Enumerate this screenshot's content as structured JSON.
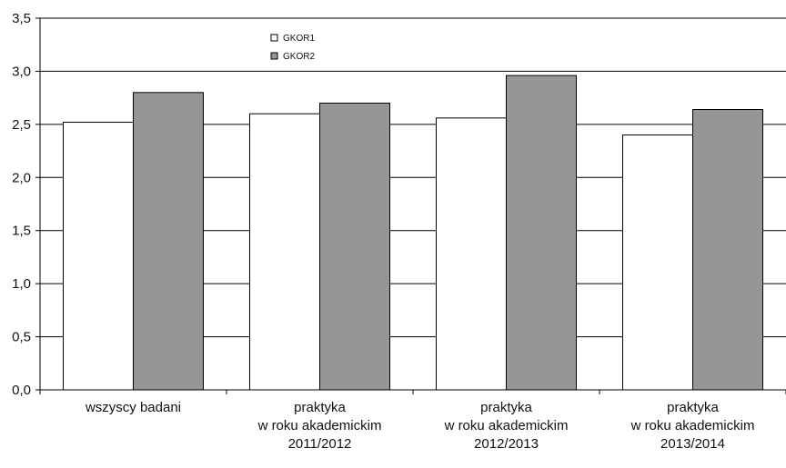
{
  "chart_data": {
    "type": "bar",
    "categories": [
      [
        "wszyscy badani"
      ],
      [
        "praktyka",
        "w roku akademickim",
        "2011/2012"
      ],
      [
        "praktyka",
        "w roku akademickim",
        "2012/2013"
      ],
      [
        "praktyka",
        "w roku akademickim",
        "2013/2014"
      ]
    ],
    "series": [
      {
        "name": "GKOR1",
        "values": [
          2.52,
          2.6,
          2.56,
          2.4
        ],
        "color": "#ffffff"
      },
      {
        "name": "GKOR2",
        "values": [
          2.8,
          2.7,
          2.96,
          2.64
        ],
        "color": "#969696"
      }
    ],
    "title": "",
    "xlabel": "",
    "ylabel": "",
    "ylim": [
      0,
      3.5
    ],
    "yticks": [
      "0,0",
      "0,5",
      "1,0",
      "1,5",
      "2,0",
      "2,5",
      "3,0",
      "3,5"
    ],
    "grid": true,
    "legend_position": "top-center"
  }
}
